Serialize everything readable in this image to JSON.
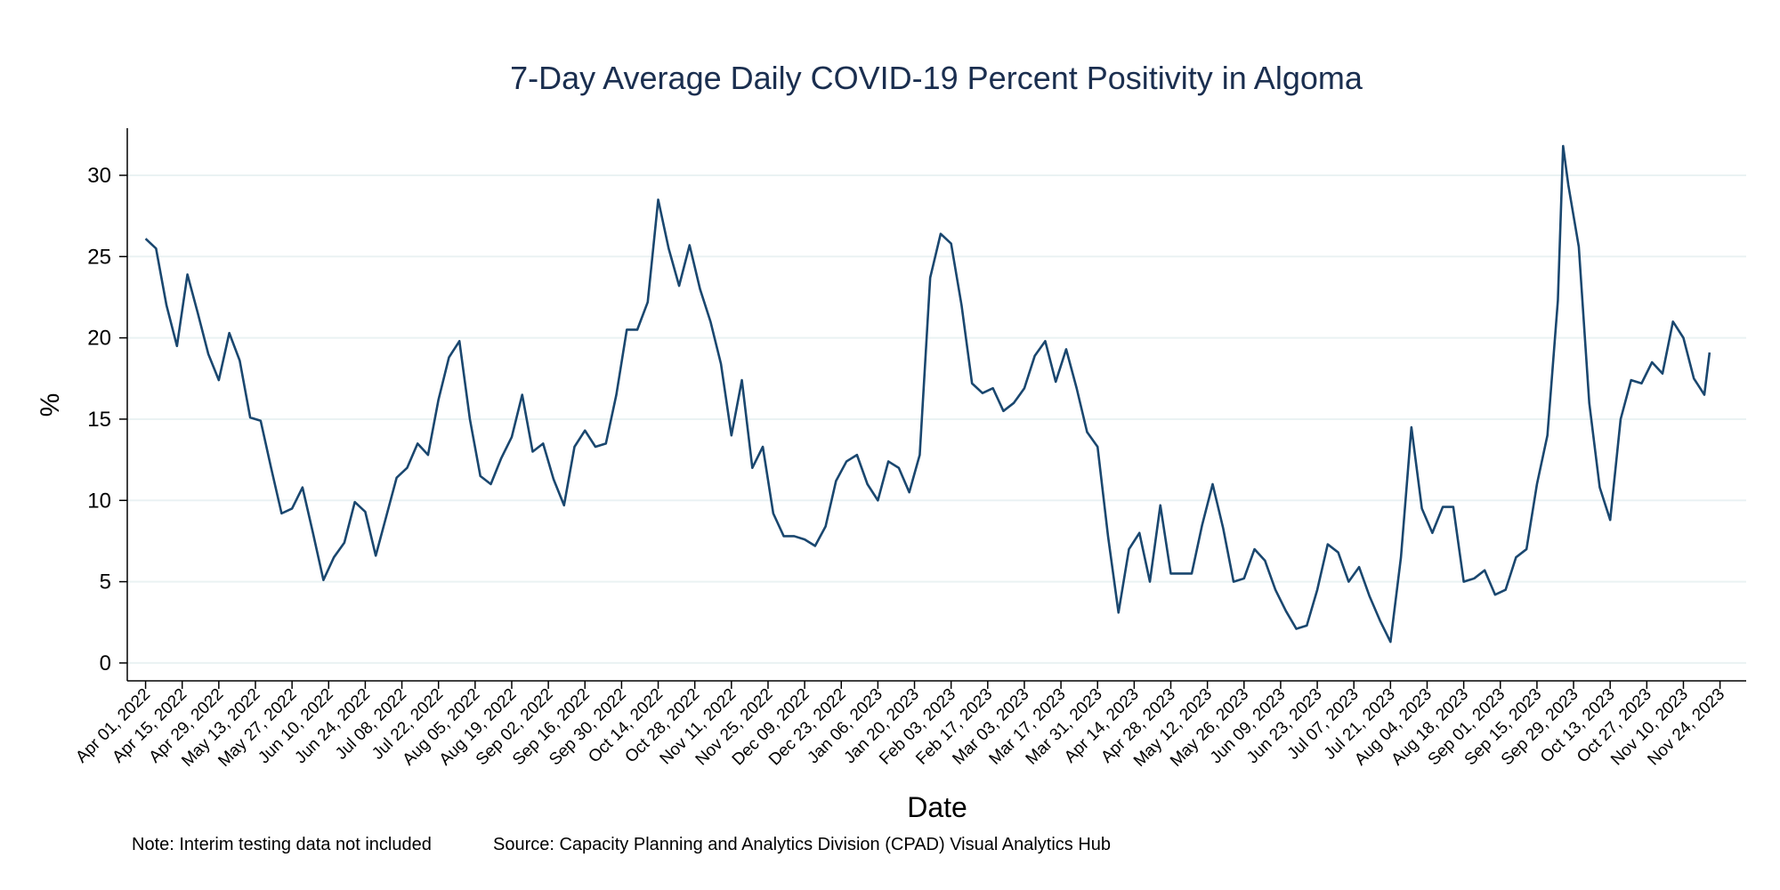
{
  "chart_data": {
    "type": "line",
    "title": "7-Day Average Daily COVID-19 Percent Positivity in Algoma",
    "xlabel": "Date",
    "ylabel": "%",
    "notes": [
      "Note: Interim testing data not included",
      "Source: Capacity Planning and Analytics Division (CPAD) Visual Analytics Hub"
    ],
    "color": "#1a476f",
    "grid": true,
    "xlim": [
      "2022-03-25",
      "2023-12-04"
    ],
    "ylim": [
      -1.1,
      32.9
    ],
    "yticks": [
      0,
      5,
      10,
      15,
      20,
      25,
      30
    ],
    "xticks": [
      {
        "value": "2022-04-01",
        "label": "Apr 01, 2022"
      },
      {
        "value": "2022-04-15",
        "label": "Apr 15, 2022"
      },
      {
        "value": "2022-04-29",
        "label": "Apr 29, 2022"
      },
      {
        "value": "2022-05-13",
        "label": "May 13, 2022"
      },
      {
        "value": "2022-05-27",
        "label": "May 27, 2022"
      },
      {
        "value": "2022-06-10",
        "label": "Jun 10, 2022"
      },
      {
        "value": "2022-06-24",
        "label": "Jun 24, 2022"
      },
      {
        "value": "2022-07-08",
        "label": "Jul 08, 2022"
      },
      {
        "value": "2022-07-22",
        "label": "Jul 22, 2022"
      },
      {
        "value": "2022-08-05",
        "label": "Aug 05, 2022"
      },
      {
        "value": "2022-08-19",
        "label": "Aug 19, 2022"
      },
      {
        "value": "2022-09-02",
        "label": "Sep 02, 2022"
      },
      {
        "value": "2022-09-16",
        "label": "Sep 16, 2022"
      },
      {
        "value": "2022-09-30",
        "label": "Sep 30, 2022"
      },
      {
        "value": "2022-10-14",
        "label": "Oct 14, 2022"
      },
      {
        "value": "2022-10-28",
        "label": "Oct 28, 2022"
      },
      {
        "value": "2022-11-11",
        "label": "Nov 11, 2022"
      },
      {
        "value": "2022-11-25",
        "label": "Nov 25, 2022"
      },
      {
        "value": "2022-12-09",
        "label": "Dec 09, 2022"
      },
      {
        "value": "2022-12-23",
        "label": "Dec 23, 2022"
      },
      {
        "value": "2023-01-06",
        "label": "Jan 06, 2023"
      },
      {
        "value": "2023-01-20",
        "label": "Jan 20, 2023"
      },
      {
        "value": "2023-02-03",
        "label": "Feb 03, 2023"
      },
      {
        "value": "2023-02-17",
        "label": "Feb 17, 2023"
      },
      {
        "value": "2023-03-03",
        "label": "Mar 03, 2023"
      },
      {
        "value": "2023-03-17",
        "label": "Mar 17, 2023"
      },
      {
        "value": "2023-03-31",
        "label": "Mar 31, 2023"
      },
      {
        "value": "2023-04-14",
        "label": "Apr 14, 2023"
      },
      {
        "value": "2023-04-28",
        "label": "Apr 28, 2023"
      },
      {
        "value": "2023-05-12",
        "label": "May 12, 2023"
      },
      {
        "value": "2023-05-26",
        "label": "May 26, 2023"
      },
      {
        "value": "2023-06-09",
        "label": "Jun 09, 2023"
      },
      {
        "value": "2023-06-23",
        "label": "Jun 23, 2023"
      },
      {
        "value": "2023-07-07",
        "label": "Jul 07, 2023"
      },
      {
        "value": "2023-07-21",
        "label": "Jul 21, 2023"
      },
      {
        "value": "2023-08-04",
        "label": "Aug 04, 2023"
      },
      {
        "value": "2023-08-18",
        "label": "Aug 18, 2023"
      },
      {
        "value": "2023-09-01",
        "label": "Sep 01, 2023"
      },
      {
        "value": "2023-09-15",
        "label": "Sep 15, 2023"
      },
      {
        "value": "2023-09-29",
        "label": "Sep 29, 2023"
      },
      {
        "value": "2023-10-13",
        "label": "Oct 13, 2023"
      },
      {
        "value": "2023-10-27",
        "label": "Oct 27, 2023"
      },
      {
        "value": "2023-11-10",
        "label": "Nov 10, 2023"
      },
      {
        "value": "2023-11-24",
        "label": "Nov 24, 2023"
      }
    ],
    "x": [
      "2022-04-01",
      "2022-04-05",
      "2022-04-09",
      "2022-04-13",
      "2022-04-17",
      "2022-04-21",
      "2022-04-25",
      "2022-04-29",
      "2022-05-03",
      "2022-05-07",
      "2022-05-11",
      "2022-05-15",
      "2022-05-19",
      "2022-05-23",
      "2022-05-27",
      "2022-05-31",
      "2022-06-04",
      "2022-06-08",
      "2022-06-12",
      "2022-06-16",
      "2022-06-20",
      "2022-06-24",
      "2022-06-28",
      "2022-07-02",
      "2022-07-06",
      "2022-07-10",
      "2022-07-14",
      "2022-07-18",
      "2022-07-22",
      "2022-07-26",
      "2022-07-30",
      "2022-08-03",
      "2022-08-07",
      "2022-08-11",
      "2022-08-15",
      "2022-08-19",
      "2022-08-23",
      "2022-08-27",
      "2022-08-31",
      "2022-09-04",
      "2022-09-08",
      "2022-09-12",
      "2022-09-16",
      "2022-09-20",
      "2022-09-24",
      "2022-09-28",
      "2022-10-02",
      "2022-10-06",
      "2022-10-10",
      "2022-10-14",
      "2022-10-18",
      "2022-10-22",
      "2022-10-26",
      "2022-10-30",
      "2022-11-03",
      "2022-11-07",
      "2022-11-11",
      "2022-11-15",
      "2022-11-19",
      "2022-11-23",
      "2022-11-27",
      "2022-12-01",
      "2022-12-05",
      "2022-12-09",
      "2022-12-13",
      "2022-12-17",
      "2022-12-21",
      "2022-12-25",
      "2022-12-29",
      "2023-01-02",
      "2023-01-06",
      "2023-01-10",
      "2023-01-14",
      "2023-01-18",
      "2023-01-22",
      "2023-01-26",
      "2023-01-30",
      "2023-02-03",
      "2023-02-07",
      "2023-02-11",
      "2023-02-15",
      "2023-02-19",
      "2023-02-23",
      "2023-02-27",
      "2023-03-03",
      "2023-03-07",
      "2023-03-11",
      "2023-03-15",
      "2023-03-19",
      "2023-03-23",
      "2023-03-27",
      "2023-03-31",
      "2023-04-04",
      "2023-04-08",
      "2023-04-12",
      "2023-04-16",
      "2023-04-20",
      "2023-04-24",
      "2023-04-28",
      "2023-05-02",
      "2023-05-06",
      "2023-05-10",
      "2023-05-14",
      "2023-05-18",
      "2023-05-22",
      "2023-05-26",
      "2023-05-30",
      "2023-06-03",
      "2023-06-07",
      "2023-06-11",
      "2023-06-15",
      "2023-06-19",
      "2023-06-23",
      "2023-06-27",
      "2023-07-01",
      "2023-07-05",
      "2023-07-09",
      "2023-07-13",
      "2023-07-17",
      "2023-07-21",
      "2023-07-25",
      "2023-07-29",
      "2023-08-02",
      "2023-08-06",
      "2023-08-10",
      "2023-08-14",
      "2023-08-18",
      "2023-08-22",
      "2023-08-26",
      "2023-08-30",
      "2023-09-03",
      "2023-09-07",
      "2023-09-11",
      "2023-09-15",
      "2023-09-19",
      "2023-09-23",
      "2023-09-25",
      "2023-09-27",
      "2023-10-01",
      "2023-10-05",
      "2023-10-09",
      "2023-10-13",
      "2023-10-17",
      "2023-10-21",
      "2023-10-25",
      "2023-10-29",
      "2023-11-02",
      "2023-11-06",
      "2023-11-10",
      "2023-11-14",
      "2023-11-18",
      "2023-11-20"
    ],
    "values": [
      26.1,
      25.5,
      22.0,
      19.5,
      23.9,
      21.5,
      19.0,
      17.4,
      20.3,
      18.6,
      15.1,
      14.9,
      12.0,
      9.2,
      9.5,
      10.8,
      8.0,
      5.1,
      6.5,
      7.4,
      9.9,
      9.3,
      6.6,
      9.0,
      11.4,
      12.0,
      13.5,
      12.8,
      16.2,
      18.8,
      19.8,
      15.0,
      11.5,
      11.0,
      12.6,
      13.9,
      16.5,
      13.0,
      13.5,
      11.3,
      9.7,
      13.3,
      14.3,
      13.3,
      13.5,
      16.5,
      20.5,
      20.5,
      22.2,
      28.5,
      25.5,
      23.2,
      25.7,
      23.0,
      21.0,
      18.4,
      14.0,
      17.4,
      12.0,
      13.3,
      9.2,
      7.8,
      7.8,
      7.6,
      7.2,
      8.4,
      11.2,
      12.4,
      12.8,
      11.0,
      10.0,
      12.4,
      12.0,
      10.5,
      12.8,
      23.7,
      26.4,
      25.8,
      22.0,
      17.2,
      16.6,
      16.9,
      15.5,
      16.0,
      16.9,
      18.9,
      19.8,
      17.3,
      19.3,
      16.9,
      14.2,
      13.3,
      7.8,
      3.1,
      7.0,
      8.0,
      5.0,
      9.7,
      5.5,
      5.5,
      5.5,
      8.5,
      11.0,
      8.3,
      5.0,
      5.2,
      7.0,
      6.3,
      4.5,
      3.2,
      2.1,
      2.3,
      4.5,
      7.3,
      6.8,
      5.0,
      5.9,
      4.1,
      2.6,
      1.3,
      6.5,
      14.5,
      9.5,
      8.0,
      9.6,
      9.6,
      5.0,
      5.2,
      5.7,
      4.2,
      4.5,
      6.5,
      7.0,
      11.0,
      14.0,
      22.3,
      31.8,
      29.4,
      25.6,
      16.0,
      10.8,
      8.8,
      15.0,
      17.4,
      17.2,
      18.5,
      17.8,
      21.0,
      20.0,
      17.5,
      16.5,
      19.1
    ]
  }
}
